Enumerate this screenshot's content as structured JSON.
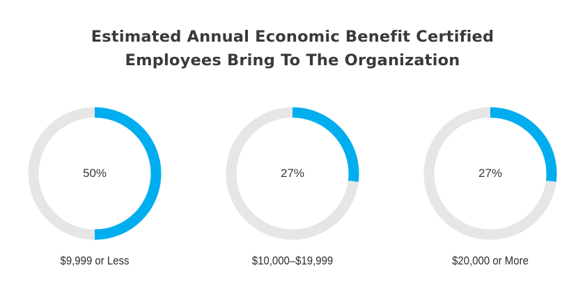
{
  "chart_data": {
    "type": "pie",
    "title": "Estimated Annual Economic Benefit Certified Employees Bring To The Organization",
    "title_lines": [
      "Estimated Annual Economic Benefit Certified",
      "Employees Bring To The Organization"
    ],
    "categories": [
      "$9,999 or Less",
      "$10,000–$19,999",
      "$20,000 or More"
    ],
    "values": [
      50,
      27,
      27
    ],
    "value_labels": [
      "50%",
      "27%",
      "27%"
    ],
    "unit": "%",
    "colors": {
      "filled": "#00aeef",
      "track": "#e6e6e6"
    }
  }
}
